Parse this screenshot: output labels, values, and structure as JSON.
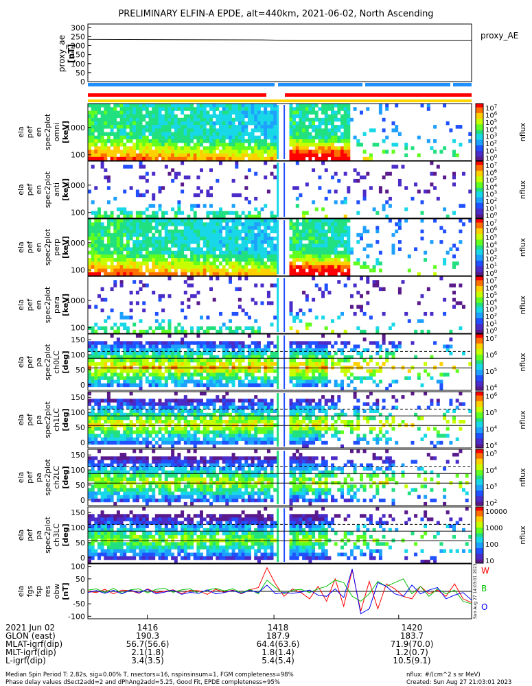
{
  "title": "PRELIMINARY ELFIN-A EPDE, alt=440km, 2021-06-02, North Ascending",
  "chart_data": [
    {
      "type": "line",
      "panel": "proxy_ae",
      "ylabel": "proxy_ae\n[nT]",
      "legend": "proxy_AE",
      "yticks": [
        "300",
        "250",
        "200",
        "150",
        "100",
        "50",
        "0"
      ],
      "ylim": [
        0,
        320
      ],
      "series": [
        {
          "name": "proxy_AE",
          "x": [
            0,
            0.45,
            0.55,
            1.0
          ],
          "values": [
            235,
            232,
            228,
            228
          ]
        }
      ]
    },
    {
      "type": "heatmap",
      "panels": [
        {
          "ylabel": "ela\npef\nen\nspec2plot\nomni\n[keV]",
          "yticks": [
            "1000",
            "100"
          ],
          "cbticks": [
            "10^7",
            "10^6",
            "10^5",
            "10^4",
            "10^3",
            "10^2",
            "10^1",
            "10^0"
          ],
          "cblabel": "nflux"
        },
        {
          "ylabel": "ela\npef\nen\nspec2plot\nanti\n[keV]",
          "yticks": [
            "1000",
            "100"
          ],
          "cbticks": [
            "10^7",
            "10^6",
            "10^5",
            "10^4",
            "10^3",
            "10^2",
            "10^1",
            "10^0"
          ],
          "cblabel": "nflux"
        },
        {
          "ylabel": "ela\npef\nen\nspec2plot\nperp\n[keV]",
          "yticks": [
            "1000",
            "100"
          ],
          "cbticks": [
            "10^7",
            "10^6",
            "10^5",
            "10^4",
            "10^3",
            "10^2",
            "10^1",
            "10^0"
          ],
          "cblabel": "nflux"
        },
        {
          "ylabel": "ela\npef\nen\nspec2plot\npara\n[keV]",
          "yticks": [
            "1000",
            "100"
          ],
          "cbticks": [
            "10^7",
            "10^6",
            "10^5",
            "10^4",
            "10^3",
            "10^2",
            "10^1",
            "10^0"
          ],
          "cblabel": "nflux"
        },
        {
          "ylabel": "ela\npef\npa\nspec2plot\nch0LC\n[deg]",
          "yticks": [
            "150",
            "100",
            "50",
            "0"
          ],
          "cbticks": [
            "10^7",
            "10^6",
            "10^5",
            "10^4"
          ],
          "cblabel": "nflux"
        },
        {
          "ylabel": "ela\npef\npa\nspec2plot\nch1LC\n[deg]",
          "yticks": [
            "150",
            "100",
            "50",
            "0"
          ],
          "cbticks": [
            "10^6",
            "10^5",
            "10^4",
            "10^3"
          ],
          "cblabel": "nflux"
        },
        {
          "ylabel": "ela\npef\npa\nspec2plot\nch2LC\n[deg]",
          "yticks": [
            "150",
            "100",
            "50",
            "0"
          ],
          "cbticks": [
            "10^5",
            "10^4",
            "10^3",
            "10^2"
          ],
          "cblabel": "nflux"
        },
        {
          "ylabel": "ela\npef\npa\nspec2plot\nch3LC\n[deg]",
          "yticks": [
            "150",
            "100",
            "50",
            "0"
          ],
          "cbticks": [
            "10000",
            "1000",
            "100",
            "10"
          ],
          "cblabel": "nflux"
        }
      ]
    },
    {
      "type": "line",
      "panel": "fgs",
      "ylabel": "ela\nfgs\nfsp\nres\nobw\n[nT]",
      "yticks": [
        "100",
        "50",
        "0",
        "-50",
        "-100"
      ],
      "ylim": [
        -110,
        110
      ],
      "legend": [
        "W",
        "B",
        "O"
      ],
      "series": [
        {
          "name": "W",
          "values": [
            0,
            -5,
            8,
            -10,
            5,
            3,
            -8,
            10,
            -5,
            0,
            6,
            -9,
            4,
            2,
            -12,
            8,
            -4,
            5,
            -10,
            6,
            15,
            95,
            30,
            -20,
            10,
            -5,
            -30,
            20,
            -40,
            50,
            -60,
            85,
            -80,
            40,
            -70,
            30,
            10,
            -20,
            -30,
            20,
            -10,
            5,
            -20,
            30,
            -30,
            -45
          ]
        },
        {
          "name": "B",
          "values": [
            5,
            10,
            -5,
            12,
            -8,
            6,
            10,
            -6,
            8,
            12,
            -4,
            6,
            10,
            -8,
            5,
            12,
            2,
            10,
            -6,
            8,
            -10,
            45,
            15,
            -10,
            5,
            8,
            -5,
            10,
            20,
            45,
            35,
            -20,
            -40,
            -10,
            40,
            20,
            35,
            50,
            -10,
            20,
            -20,
            10,
            -10,
            5,
            -40,
            -50
          ]
        },
        {
          "name": "O",
          "values": [
            -5,
            3,
            -8,
            4,
            -10,
            5,
            -6,
            8,
            -10,
            -3,
            5,
            -12,
            -4,
            -8,
            6,
            -10,
            -5,
            3,
            -8,
            4,
            -5,
            25,
            -10,
            -5,
            -8,
            -3,
            5,
            -15,
            -20,
            10,
            -25,
            90,
            -90,
            -70,
            35,
            20,
            -10,
            -20,
            25,
            -10,
            5,
            15,
            -30,
            -15,
            -5,
            -35
          ]
        }
      ]
    }
  ],
  "bottom": {
    "rows": [
      {
        "label": "2021 Jun 02",
        "vals": [
          "1416",
          "1418",
          "1420"
        ]
      },
      {
        "label": "GLON (east)",
        "vals": [
          "190.3",
          "187.9",
          "183.7"
        ]
      },
      {
        "label": "MLAT-igrf(dip)",
        "vals": [
          "56.7(56.6)",
          "64.4(63.6)",
          "71.9(70.0)"
        ]
      },
      {
        "label": "MLT-igrf(dip)",
        "vals": [
          "2.1(1.8)",
          "1.8(1.4)",
          "1.2(0.7)"
        ]
      },
      {
        "label": "L-igrf(dip)",
        "vals": [
          "3.4(3.5)",
          "5.4(5.4)",
          "10.5(9.1)"
        ]
      }
    ],
    "footer_left1": "Median Spin Period T: 2.82s, sig=0.00% T, nsectors=16, nspinsinsum=1, FGM completeness=98%",
    "footer_left2": "Phase delay values dSect2add=2 and dPhAng2add=5.25, Good Fit, EPDE completeness=95%",
    "footer_right1": "nflux: #/(cm^2 s sr MeV)",
    "footer_right2": "Created: Sun Aug 27 21:03:01 2023",
    "stamp": "Sun Aug 27 14:03:01 2023"
  },
  "colors": {
    "red": "#ff0000",
    "blue": "#1e90ff",
    "yellow": "#ffd700",
    "green": "#00c000",
    "navy": "#0000ff"
  }
}
